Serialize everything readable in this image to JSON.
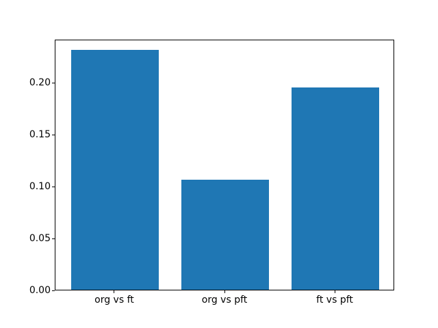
{
  "figure": {
    "background": "#ffffff"
  },
  "chart_data": {
    "type": "bar",
    "categories": [
      "org vs ft",
      "org vs pft",
      "ft vs pft"
    ],
    "values": [
      0.231,
      0.106,
      0.195
    ],
    "title": "",
    "xlabel": "",
    "ylabel": "",
    "ylim": [
      0,
      0.2415
    ],
    "ytick_values": [
      0.0,
      0.05,
      0.1,
      0.15,
      0.2
    ],
    "ytick_labels": [
      "0.00",
      "0.05",
      "0.10",
      "0.15",
      "0.20"
    ],
    "bar_color": "#1f77b4",
    "spine_color": "#000000",
    "grid": false,
    "legend_position": "none"
  }
}
